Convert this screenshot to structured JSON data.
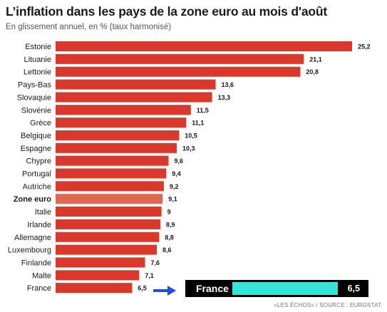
{
  "header": {
    "title": "L’inflation dans les pays de la zone euro au mois d'août",
    "subtitle": "En glissement annuel, en % (taux harmonisé)"
  },
  "footer": {
    "source": "«LES ÉCHOS» / SOURCE : EUROSTAT"
  },
  "callout": {
    "label": "France",
    "value": "6,5",
    "value_num": 6.5
  },
  "colors": {
    "bar": "#d9382a",
    "highlight_bar": "#e0684f",
    "callout_bg": "#000000",
    "callout_bar": "#33e6d6",
    "arrow": "#1f4fe0"
  },
  "chart_data": {
    "type": "bar",
    "orientation": "horizontal",
    "title": "L’inflation dans les pays de la zone euro au mois d'août",
    "subtitle": "En glissement annuel, en % (taux harmonisé)",
    "categories": [
      "Estonie",
      "Lituanie",
      "Lettonie",
      "Pays-Bas",
      "Slovaquie",
      "Slovénie",
      "Grèce",
      "Belgique",
      "Espagne",
      "Chypre",
      "Portugal",
      "Autriche",
      "Zone euro",
      "Italie",
      "Irlande",
      "Allemagne",
      "Luxembourg",
      "Finlande",
      "Malte",
      "France"
    ],
    "values": [
      25.2,
      21.1,
      20.8,
      13.6,
      13.3,
      11.5,
      11.1,
      10.5,
      10.3,
      9.6,
      9.4,
      9.2,
      9.1,
      9,
      8.9,
      8.8,
      8.6,
      7.6,
      7.1,
      6.5
    ],
    "labels": [
      "25,2",
      "21,1",
      "20,8",
      "13,6",
      "13,3",
      "11,5",
      "11,1",
      "10,5",
      "10,3",
      "9,6",
      "9,4",
      "9,2",
      "9,1",
      "9",
      "8,9",
      "8,8",
      "8,6",
      "7,6",
      "7,1",
      "6,5"
    ],
    "highlight": "Zone euro",
    "xlim": [
      0,
      25.2
    ],
    "grid": false,
    "legend": "none"
  }
}
